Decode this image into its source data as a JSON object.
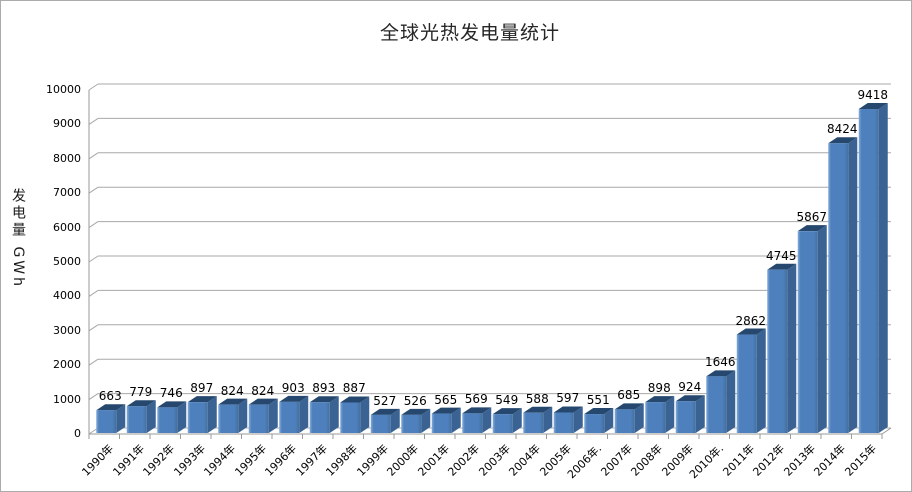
{
  "window": {
    "background": "#ffffff",
    "border_color": "#ababab"
  },
  "chart_data": {
    "type": "bar",
    "style": "3d-column",
    "title": "全球光热发电量统计",
    "ylabel": "发电量 GWh",
    "xlabel": "",
    "categories": [
      "1990年",
      "1991年",
      "1992年",
      "1993年",
      "1994年",
      "1995年",
      "1996年",
      "1997年",
      "1998年",
      "1999年",
      "2000年",
      "2001年",
      "2002年",
      "2003年",
      "2004年",
      "2005年",
      "2006年.",
      "2007年",
      "2008年",
      "2009年",
      "2010年.",
      "2011年",
      "2012年",
      "2013年",
      "2014年",
      "2015年"
    ],
    "values": [
      663,
      779,
      746,
      897,
      824,
      824,
      903,
      893,
      887,
      527,
      526,
      565,
      569,
      549,
      588,
      597,
      551,
      685,
      898,
      924,
      1646,
      2862,
      4745,
      5867,
      8424,
      9418
    ],
    "ylim": [
      0,
      10000
    ],
    "yticks": [
      0,
      1000,
      2000,
      3000,
      4000,
      5000,
      6000,
      7000,
      8000,
      9000,
      10000
    ],
    "grid": true,
    "legend_position": "none",
    "value_labels_shown": true,
    "colors": {
      "bar_front": "#4d80bd",
      "bar_front_highlight": "#85abd8",
      "bar_front_shade": "#44709f",
      "bar_side": "#3a6394",
      "bar_top": "#26486e",
      "gridline": "#a8a8a8",
      "axis": "#9a9a9a",
      "text": "#000000"
    }
  }
}
